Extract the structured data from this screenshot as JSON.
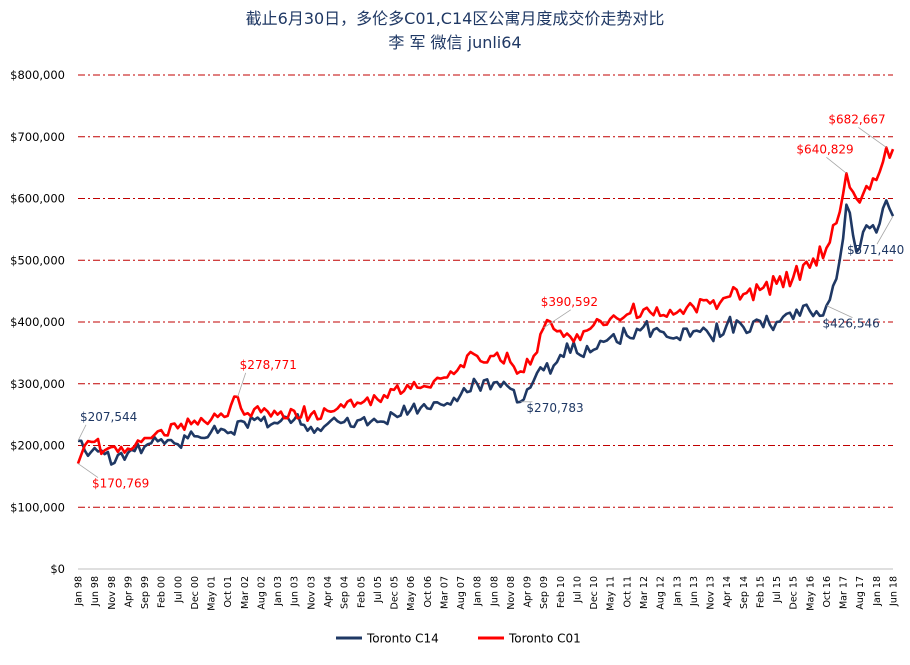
{
  "chart_data": {
    "type": "line",
    "title": "截止6月30日，多伦多C01,C14区公寓月度成交价走势对比",
    "subtitle": "李 军  微信 junli64",
    "ylim": [
      0,
      800000
    ],
    "ytick_values": [
      0,
      100000,
      200000,
      300000,
      400000,
      500000,
      600000,
      700000,
      800000
    ],
    "ytick_labels": [
      "$0",
      "$100,000",
      "$200,000",
      "$300,000",
      "$400,000",
      "$500,000",
      "$600,000",
      "$700,000",
      "$800,000"
    ],
    "x_start": "1998-01",
    "x_end": "2018-06",
    "xtick_labels": [
      "Jan 98",
      "Jun 98",
      "Nov 98",
      "Apr 99",
      "Sep 99",
      "Feb 00",
      "Jul 00",
      "Dec 00",
      "May 01",
      "Oct 01",
      "Mar 02",
      "Aug 02",
      "Jan 03",
      "Jun 03",
      "Nov 03",
      "Apr 04",
      "Sep 04",
      "Feb 05",
      "Jul 05",
      "Dec 05",
      "May 06",
      "Oct 06",
      "Mar 07",
      "Aug 07",
      "Jan 08",
      "Jun 08",
      "Nov 08",
      "Apr 09",
      "Sep 09",
      "Feb 10",
      "Jul 10",
      "Dec 10",
      "May 11",
      "Oct 11",
      "Mar 12",
      "Aug 12",
      "Jan 13",
      "Jun 13",
      "Nov 13",
      "Apr 14",
      "Sep 14",
      "Feb 15",
      "Jul 15",
      "Dec 15",
      "May 16",
      "Oct 16",
      "Mar 17",
      "Aug 17",
      "Jan 18",
      "Jun 18"
    ],
    "grid": true,
    "grid_color": "#c00000",
    "legend_position": "bottom",
    "series": [
      {
        "name": "Toronto C14",
        "color": "#1f3864",
        "anchors": [
          [
            "1998-01",
            207544
          ],
          [
            "1998-03",
            192000
          ],
          [
            "1998-06",
            196000
          ],
          [
            "1998-09",
            186000
          ],
          [
            "1998-12",
            172000
          ],
          [
            "1999-04",
            188000
          ],
          [
            "1999-09",
            198000
          ],
          [
            "2000-02",
            210000
          ],
          [
            "2000-07",
            202000
          ],
          [
            "2000-12",
            215000
          ],
          [
            "2001-05",
            222000
          ],
          [
            "2001-10",
            220000
          ],
          [
            "2002-03",
            238000
          ],
          [
            "2002-08",
            240000
          ],
          [
            "2003-01",
            236000
          ],
          [
            "2003-06",
            242000
          ],
          [
            "2003-11",
            230000
          ],
          [
            "2004-04",
            235000
          ],
          [
            "2004-09",
            238000
          ],
          [
            "2005-02",
            242000
          ],
          [
            "2005-07",
            238000
          ],
          [
            "2005-12",
            250000
          ],
          [
            "2006-05",
            258000
          ],
          [
            "2006-10",
            260000
          ],
          [
            "2007-03",
            265000
          ],
          [
            "2007-08",
            282000
          ],
          [
            "2008-01",
            300000
          ],
          [
            "2008-06",
            302000
          ],
          [
            "2008-11",
            292000
          ],
          [
            "2009-02",
            270783
          ],
          [
            "2009-06",
            305000
          ],
          [
            "2009-09",
            322000
          ],
          [
            "2010-01",
            335000
          ],
          [
            "2010-04",
            365000
          ],
          [
            "2010-07",
            350000
          ],
          [
            "2010-12",
            355000
          ],
          [
            "2011-05",
            375000
          ],
          [
            "2011-10",
            378000
          ],
          [
            "2012-03",
            392000
          ],
          [
            "2012-08",
            385000
          ],
          [
            "2013-01",
            375000
          ],
          [
            "2013-06",
            385000
          ],
          [
            "2013-11",
            378000
          ],
          [
            "2014-04",
            395000
          ],
          [
            "2014-09",
            392000
          ],
          [
            "2015-02",
            402000
          ],
          [
            "2015-07",
            400000
          ],
          [
            "2015-12",
            405000
          ],
          [
            "2016-05",
            418000
          ],
          [
            "2016-10",
            426546
          ],
          [
            "2017-01",
            470000
          ],
          [
            "2017-04",
            590000
          ],
          [
            "2017-06",
            540000
          ],
          [
            "2017-08",
            520000
          ],
          [
            "2017-11",
            552000
          ],
          [
            "2018-01",
            545000
          ],
          [
            "2018-04",
            597000
          ],
          [
            "2018-06",
            571440
          ]
        ]
      },
      {
        "name": "Toronto C01",
        "color": "#ff0000",
        "anchors": [
          [
            "1998-01",
            170769
          ],
          [
            "1998-03",
            200000
          ],
          [
            "1998-06",
            206000
          ],
          [
            "1998-09",
            192000
          ],
          [
            "1998-12",
            198000
          ],
          [
            "1999-04",
            195000
          ],
          [
            "1999-09",
            212000
          ],
          [
            "2000-02",
            225000
          ],
          [
            "2000-07",
            228000
          ],
          [
            "2000-12",
            240000
          ],
          [
            "2001-05",
            242000
          ],
          [
            "2001-10",
            248000
          ],
          [
            "2002-01",
            278771
          ],
          [
            "2002-03",
            250000
          ],
          [
            "2002-08",
            254000
          ],
          [
            "2003-01",
            250000
          ],
          [
            "2003-06",
            256000
          ],
          [
            "2003-11",
            250000
          ],
          [
            "2004-04",
            256000
          ],
          [
            "2004-09",
            262000
          ],
          [
            "2005-02",
            268000
          ],
          [
            "2005-07",
            275000
          ],
          [
            "2005-12",
            290000
          ],
          [
            "2006-05",
            292000
          ],
          [
            "2006-10",
            295000
          ],
          [
            "2007-03",
            310000
          ],
          [
            "2007-08",
            330000
          ],
          [
            "2008-01",
            345000
          ],
          [
            "2008-06",
            345000
          ],
          [
            "2008-11",
            335000
          ],
          [
            "2009-02",
            320000
          ],
          [
            "2009-06",
            345000
          ],
          [
            "2009-09",
            390592
          ],
          [
            "2010-01",
            385000
          ],
          [
            "2010-07",
            380000
          ],
          [
            "2010-12",
            395000
          ],
          [
            "2011-05",
            405000
          ],
          [
            "2011-10",
            412000
          ],
          [
            "2012-03",
            420000
          ],
          [
            "2012-08",
            410000
          ],
          [
            "2013-01",
            415000
          ],
          [
            "2013-06",
            425000
          ],
          [
            "2013-11",
            430000
          ],
          [
            "2014-04",
            440000
          ],
          [
            "2014-09",
            445000
          ],
          [
            "2015-02",
            452000
          ],
          [
            "2015-07",
            462000
          ],
          [
            "2015-12",
            472000
          ],
          [
            "2016-05",
            488000
          ],
          [
            "2016-10",
            520000
          ],
          [
            "2017-01",
            560000
          ],
          [
            "2017-04",
            640829
          ],
          [
            "2017-07",
            600000
          ],
          [
            "2017-10",
            620000
          ],
          [
            "2018-01",
            630000
          ],
          [
            "2018-04",
            682667
          ],
          [
            "2018-06",
            680000
          ]
        ]
      }
    ],
    "annotations": [
      {
        "text": "$207,544",
        "series": 0,
        "date": "1998-01",
        "value": 207544
      },
      {
        "text": "$170,769",
        "series": 1,
        "date": "1998-01",
        "value": 170769
      },
      {
        "text": "$278,771",
        "series": 1,
        "date": "2002-01",
        "value": 278771
      },
      {
        "text": "$270,783",
        "series": 0,
        "date": "2009-02",
        "value": 270783
      },
      {
        "text": "$390,592",
        "series": 1,
        "date": "2009-09",
        "value": 390592
      },
      {
        "text": "$426,546",
        "series": 0,
        "date": "2016-10",
        "value": 426546
      },
      {
        "text": "$640,829",
        "series": 1,
        "date": "2017-04",
        "value": 640829
      },
      {
        "text": "$571,440",
        "series": 0,
        "date": "2018-06",
        "value": 571440
      },
      {
        "text": "$682,667",
        "series": 1,
        "date": "2018-04",
        "value": 682667
      }
    ]
  }
}
